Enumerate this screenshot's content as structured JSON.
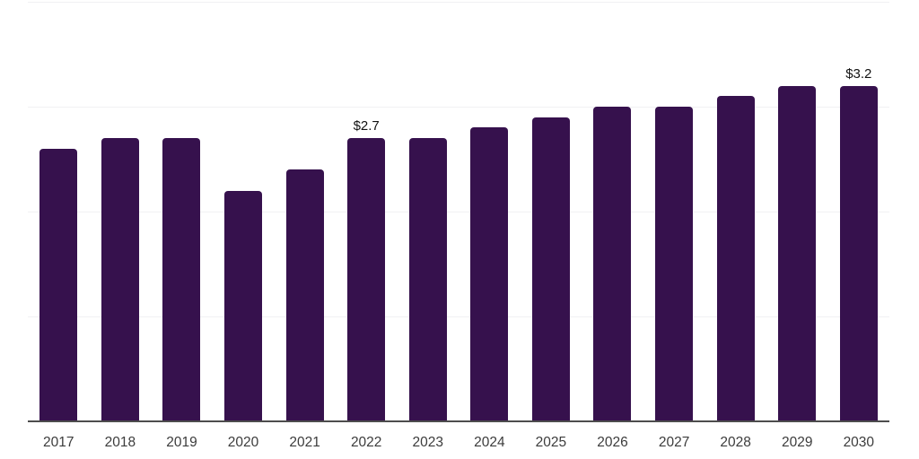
{
  "chart_data": {
    "type": "bar",
    "title": "",
    "xlabel": "",
    "ylabel": "",
    "categories": [
      "2017",
      "2018",
      "2019",
      "2020",
      "2021",
      "2022",
      "2023",
      "2024",
      "2025",
      "2026",
      "2027",
      "2028",
      "2029",
      "2030"
    ],
    "values": [
      2.6,
      2.7,
      2.7,
      2.2,
      2.4,
      2.7,
      2.7,
      2.8,
      2.9,
      3.0,
      3.0,
      3.1,
      3.2,
      3.2
    ],
    "data_labels": {
      "2022": "$2.7",
      "2030": "$3.2"
    },
    "ylim": [
      0,
      4
    ],
    "grid": "horizontal",
    "gridline_values": [
      1,
      2,
      3,
      4
    ],
    "legend": "none",
    "colors": {
      "bar": "#36114D",
      "gridline": "#f1f1f3",
      "axis_line": "#4d4d4d",
      "tick_label": "#3c3c3c",
      "data_label": "#111111",
      "background": "#ffffff"
    }
  }
}
